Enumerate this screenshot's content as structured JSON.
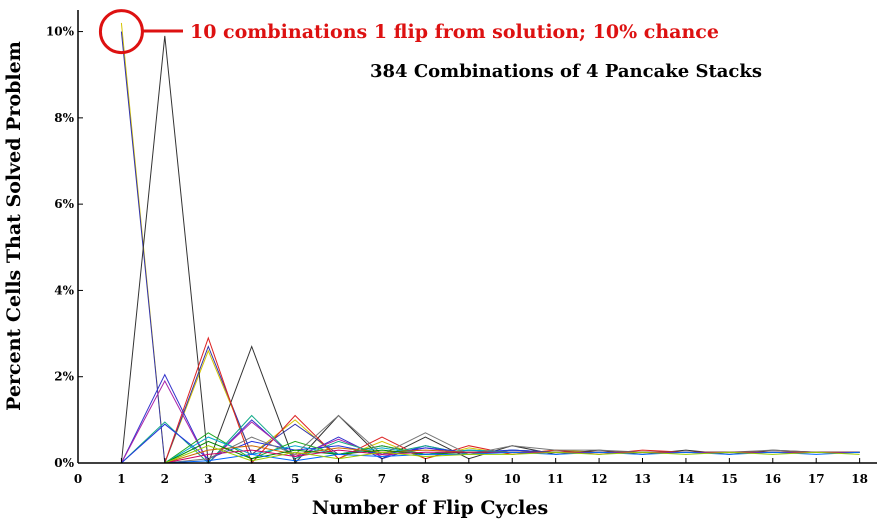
{
  "chart_data": {
    "type": "line",
    "title": "384 Combinations of 4 Pancake Stacks",
    "xlabel": "Number of Flip Cycles",
    "ylabel": "Percent Cells That Solved Problem",
    "xlim": [
      0,
      18.4
    ],
    "ylim": [
      0,
      10.5
    ],
    "x_ticks": [
      "0",
      "1",
      "2",
      "3",
      "4",
      "5",
      "6",
      "7",
      "8",
      "9",
      "10",
      "11",
      "12",
      "13",
      "14",
      "15",
      "16",
      "17",
      "18"
    ],
    "y_ticks": [
      {
        "value": 0,
        "label": "0%"
      },
      {
        "value": 2,
        "label": "2%"
      },
      {
        "value": 4,
        "label": "4%"
      },
      {
        "value": 6,
        "label": "6%"
      },
      {
        "value": 8,
        "label": "8%"
      },
      {
        "value": 10,
        "label": "10%"
      }
    ],
    "annotation": {
      "text": "10 combinations 1 flip from solution; 10% chance",
      "color": "#dd1111",
      "x": 1,
      "y": 10
    },
    "grid": false,
    "x": [
      1,
      2,
      3,
      4,
      5,
      6,
      7,
      8,
      9,
      10,
      11,
      12,
      13,
      14,
      15,
      16,
      17,
      18
    ],
    "series": [
      {
        "color": "#d4c400",
        "values": [
          10.2,
          0,
          2.6,
          0.2,
          1.0,
          0.1,
          0.5,
          0.1,
          0.35,
          0.2,
          0.3,
          0.25,
          0.25,
          0.25,
          0.25,
          0.25,
          0.25,
          0.25
        ]
      },
      {
        "color": "#3333aa",
        "values": [
          10.0,
          0,
          2.7,
          0.2,
          0.9,
          0.2,
          0.4,
          0.2,
          0.3,
          0.25,
          0.25,
          0.25,
          0.25,
          0.25,
          0.25,
          0.25,
          0.25,
          0.25
        ]
      },
      {
        "color": "#333333",
        "values": [
          0,
          9.9,
          0,
          2.7,
          0,
          1.1,
          0.1,
          0.6,
          0.1,
          0.4,
          0.2,
          0.3,
          0.2,
          0.3,
          0.2,
          0.3,
          0.25,
          0.25
        ]
      },
      {
        "color": "#dd2222",
        "values": [
          0,
          0,
          2.9,
          0,
          1.1,
          0.1,
          0.6,
          0.1,
          0.4,
          0.2,
          0.3,
          0.2,
          0.3,
          0.25,
          0.25,
          0.25,
          0.25,
          0.25
        ]
      },
      {
        "color": "#3333cc",
        "values": [
          0,
          2.05,
          0,
          1.0,
          0.1,
          0.6,
          0.1,
          0.4,
          0.2,
          0.3,
          0.25,
          0.25,
          0.25,
          0.25,
          0.25,
          0.25,
          0.25,
          0.25
        ]
      },
      {
        "color": "#aa22aa",
        "values": [
          0,
          1.9,
          0,
          0.95,
          0.15,
          0.55,
          0.15,
          0.35,
          0.2,
          0.3,
          0.25,
          0.25,
          0.25,
          0.25,
          0.25,
          0.25,
          0.25,
          0.25
        ]
      },
      {
        "color": "#11aa88",
        "values": [
          0,
          0.95,
          0,
          1.1,
          0.1,
          0.5,
          0.2,
          0.4,
          0.2,
          0.3,
          0.25,
          0.25,
          0.25,
          0.25,
          0.25,
          0.25,
          0.25,
          0.25
        ]
      },
      {
        "color": "#2233dd",
        "values": [
          0,
          0.9,
          0.1,
          0.5,
          0.3,
          0.4,
          0.2,
          0.35,
          0.25,
          0.3,
          0.25,
          0.25,
          0.25,
          0.25,
          0.25,
          0.25,
          0.25,
          0.25
        ]
      },
      {
        "color": "#22aa22",
        "values": [
          0,
          0,
          0.7,
          0.1,
          0.5,
          0.2,
          0.4,
          0.2,
          0.3,
          0.25,
          0.25,
          0.25,
          0.25,
          0.25,
          0.25,
          0.25,
          0.25,
          0.25
        ]
      },
      {
        "color": "#00aacc",
        "values": [
          0,
          0,
          0.6,
          0.2,
          0.4,
          0.2,
          0.35,
          0.2,
          0.3,
          0.25,
          0.25,
          0.25,
          0.25,
          0.25,
          0.25,
          0.25,
          0.25,
          0.25
        ]
      },
      {
        "color": "#cc6600",
        "values": [
          0,
          0,
          0.3,
          0.4,
          0.2,
          0.35,
          0.25,
          0.3,
          0.25,
          0.25,
          0.25,
          0.25,
          0.25,
          0.25,
          0.25,
          0.25,
          0.25,
          0.25
        ]
      },
      {
        "color": "#777777",
        "values": [
          0,
          0,
          0.1,
          0.6,
          0.2,
          1.1,
          0.2,
          0.7,
          0.2,
          0.4,
          0.3,
          0.3,
          0.25,
          0.25,
          0.25,
          0.3,
          0.25,
          0.25
        ]
      },
      {
        "color": "#008800",
        "values": [
          0,
          0,
          0.5,
          0.1,
          0.3,
          0.2,
          0.3,
          0.2,
          0.25,
          0.25,
          0.25,
          0.25,
          0.25,
          0.25,
          0.25,
          0.25,
          0.25,
          0.25
        ]
      },
      {
        "color": "#cc0066",
        "values": [
          0,
          0,
          0.2,
          0.3,
          0.15,
          0.3,
          0.2,
          0.25,
          0.25,
          0.25,
          0.25,
          0.25,
          0.25,
          0.25,
          0.25,
          0.25,
          0.25,
          0.25
        ]
      },
      {
        "color": "#0066ff",
        "values": [
          0,
          0,
          0.05,
          0.2,
          0.05,
          0.2,
          0.15,
          0.2,
          0.2,
          0.25,
          0.2,
          0.25,
          0.2,
          0.25,
          0.2,
          0.25,
          0.2,
          0.25
        ]
      },
      {
        "color": "#99cc00",
        "values": [
          0,
          0,
          0.4,
          0.05,
          0.25,
          0.1,
          0.25,
          0.15,
          0.2,
          0.2,
          0.25,
          0.2,
          0.25,
          0.2,
          0.25,
          0.2,
          0.25,
          0.2
        ]
      }
    ]
  }
}
